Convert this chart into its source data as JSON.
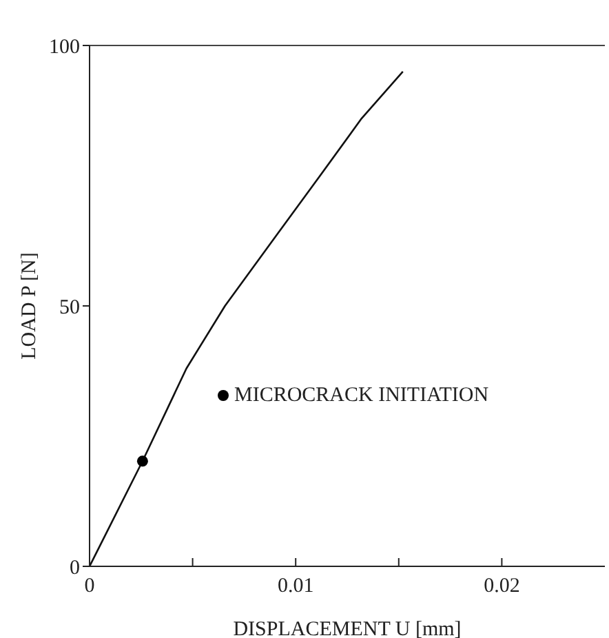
{
  "chart_data": {
    "type": "line",
    "xlabel": "DISPLACEMENT U [mm]",
    "ylabel": "LOAD P [N]",
    "xlim": [
      0,
      0.025
    ],
    "xticks": [
      0,
      {
        "value": 0.005,
        "label": null
      },
      0.01,
      {
        "value": 0.015,
        "label": null
      },
      0.02
    ],
    "ylim": [
      0,
      100
    ],
    "yticks": [
      0,
      50,
      100
    ],
    "grid": false,
    "legend": "right",
    "line_style": "solid",
    "series": [
      {
        "color": "#111111",
        "x": [
          0,
          0.00257,
          0.0047,
          0.00657,
          0.009,
          0.011,
          0.0132,
          0.0152
        ],
        "values": [
          0,
          20.2,
          38,
          50,
          63.2,
          74,
          86,
          95
        ]
      },
      {
        "type": "scatter",
        "name": "MICROCRACK INITIATION",
        "color": "#000000",
        "x": [
          0.00257
        ],
        "values": [
          20.2
        ]
      }
    ]
  }
}
